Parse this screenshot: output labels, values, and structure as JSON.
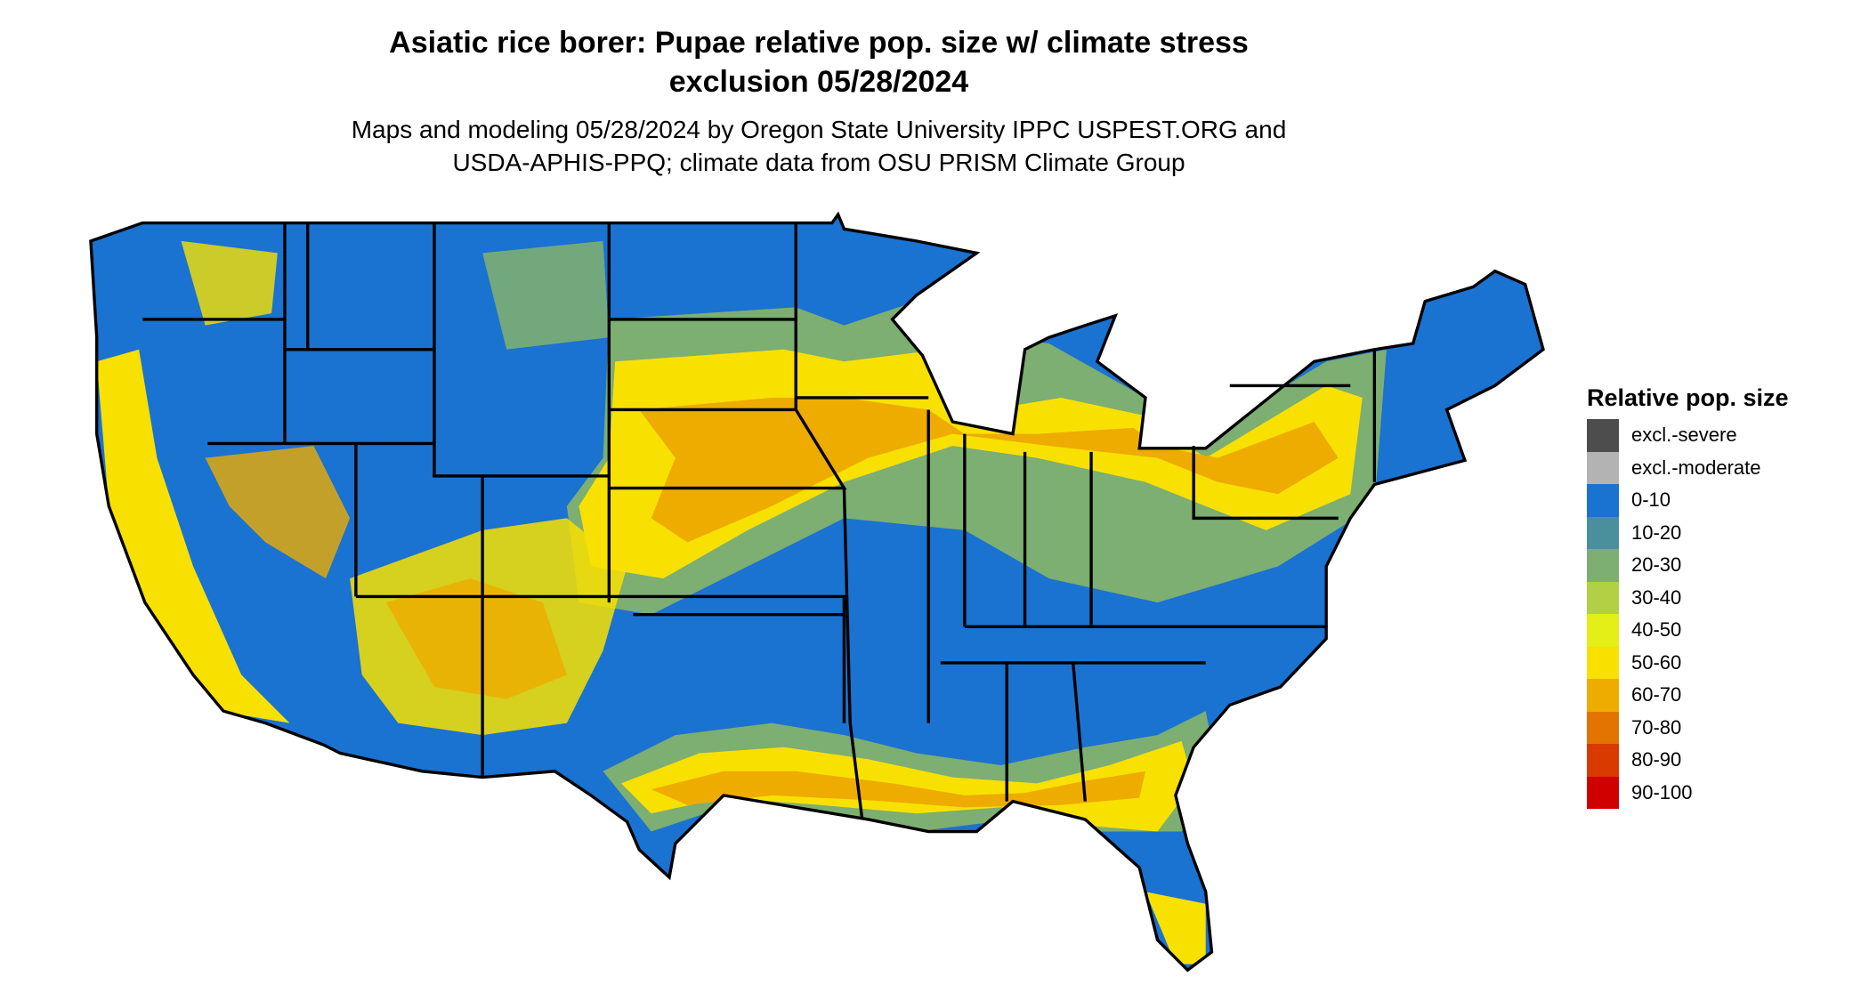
{
  "title": {
    "line1": "Asiatic rice borer: Pupae relative pop. size w/ climate stress",
    "line2": "exclusion 05/28/2024"
  },
  "subtitle": {
    "line1": "Maps and modeling 05/28/2024 by Oregon State University IPPC USPEST.ORG and",
    "line2": "USDA-APHIS-PPQ; climate data from OSU PRISM Climate Group"
  },
  "legend": {
    "title": "Relative pop. size",
    "items": [
      {
        "label": "excl.-severe",
        "color": "#4d4d4d"
      },
      {
        "label": "excl.-moderate",
        "color": "#b3b3b3"
      },
      {
        "label": "0-10",
        "color": "#1a72d1"
      },
      {
        "label": "10-20",
        "color": "#4a8f9c"
      },
      {
        "label": "20-30",
        "color": "#7dae72"
      },
      {
        "label": "30-40",
        "color": "#b1d044"
      },
      {
        "label": "40-50",
        "color": "#e4ef18"
      },
      {
        "label": "50-60",
        "color": "#f8e100"
      },
      {
        "label": "60-70",
        "color": "#eeab00"
      },
      {
        "label": "70-80",
        "color": "#e47400"
      },
      {
        "label": "80-90",
        "color": "#d93a00"
      },
      {
        "label": "90-100",
        "color": "#d10000"
      }
    ]
  }
}
